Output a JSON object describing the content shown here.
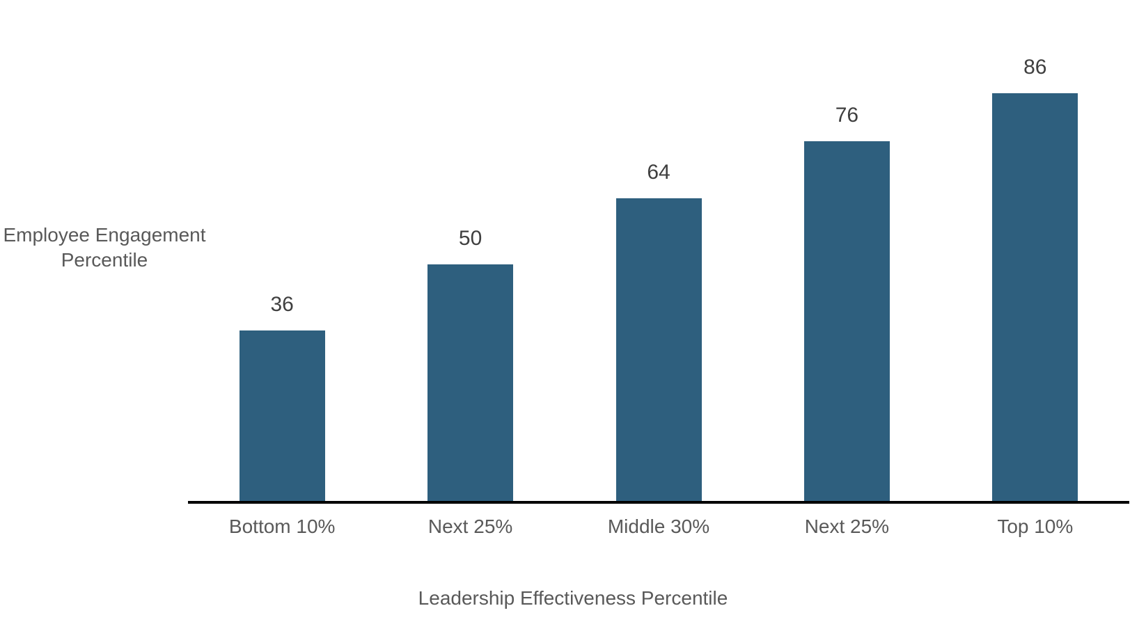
{
  "chart_data": {
    "type": "bar",
    "categories": [
      "Bottom 10%",
      "Next 25%",
      "Middle 30%",
      "Next 25%",
      "Top 10%"
    ],
    "values": [
      36,
      50,
      64,
      76,
      86
    ],
    "xlabel": "Leadership Effectiveness Percentile",
    "ylabel": "Employee Engagement Percentile",
    "ylim": [
      0,
      90
    ],
    "grid": false,
    "legend": "none",
    "data_labels": true,
    "bar_color": "#2E5F7E",
    "value_label_color": "#3F3F3F",
    "axis_text_color": "#595959",
    "axis_line_color": "#000000",
    "background_color": "#FFFFFF"
  }
}
